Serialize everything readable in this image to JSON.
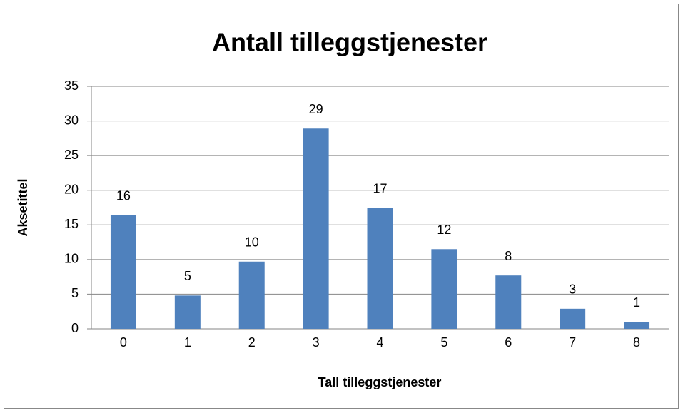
{
  "chart_data": {
    "type": "bar",
    "title": "Antall tilleggstjenester",
    "x_label": "Tall tilleggstjenester",
    "y_label": "Aksetittel",
    "categories": [
      "0",
      "1",
      "2",
      "3",
      "4",
      "5",
      "6",
      "7",
      "8"
    ],
    "values": [
      16.4,
      4.8,
      9.7,
      28.9,
      17.4,
      11.5,
      7.7,
      2.9,
      1.0
    ],
    "value_labels": [
      "16",
      "5",
      "10",
      "29",
      "17",
      "12",
      "8",
      "3",
      "1"
    ],
    "color": "#4f81bd",
    "ylim": [
      0,
      35
    ],
    "yticks": [
      0,
      5,
      10,
      15,
      20,
      25,
      30,
      35
    ],
    "grid": true
  }
}
